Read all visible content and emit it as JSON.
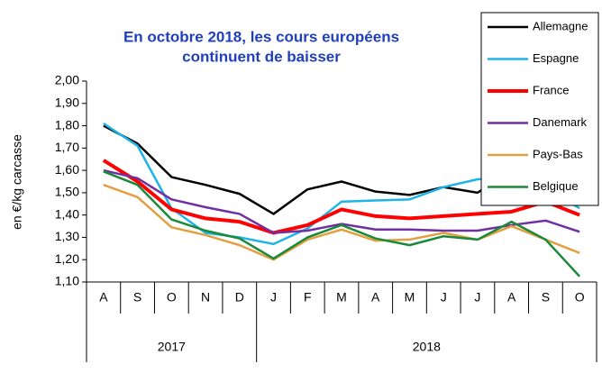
{
  "chart_data": {
    "type": "line",
    "title": [
      "En octobre 2018, les cours européens",
      "continuent de baisser"
    ],
    "y_label": "en €/kg carcasse",
    "categories": [
      "A",
      "S",
      "O",
      "N",
      "D",
      "J",
      "F",
      "M",
      "A",
      "M",
      "J",
      "J",
      "A",
      "S",
      "O"
    ],
    "category_groups": [
      "2017",
      "2017",
      "2017",
      "2017",
      "2017",
      "2018",
      "2018",
      "2018",
      "2018",
      "2018",
      "2018",
      "2018",
      "2018",
      "2018",
      "2018"
    ],
    "ylim": [
      1.1,
      2.0
    ],
    "yticks": [
      {
        "value": 1.1,
        "label": "1,10"
      },
      {
        "value": 1.2,
        "label": "1,20"
      },
      {
        "value": 1.3,
        "label": "1,30"
      },
      {
        "value": 1.4,
        "label": "1,40"
      },
      {
        "value": 1.5,
        "label": "1,50"
      },
      {
        "value": 1.6,
        "label": "1,60"
      },
      {
        "value": 1.7,
        "label": "1,70"
      },
      {
        "value": 1.8,
        "label": "1,80"
      },
      {
        "value": 1.9,
        "label": "1,90"
      },
      {
        "value": 2.0,
        "label": "2,00"
      }
    ],
    "legend": "top-right",
    "series": [
      {
        "name": "Allemagne",
        "color": "#000000",
        "values": [
          1.8,
          1.72,
          1.57,
          1.535,
          1.495,
          1.405,
          1.515,
          1.55,
          1.505,
          1.49,
          1.525,
          1.5,
          1.6,
          1.525,
          1.445
        ]
      },
      {
        "name": "Espagne",
        "color": "#1eb4e8",
        "values": [
          1.81,
          1.71,
          1.43,
          1.32,
          1.3,
          1.27,
          1.34,
          1.46,
          1.465,
          1.47,
          1.525,
          1.56,
          1.57,
          1.52,
          1.43
        ]
      },
      {
        "name": "France",
        "color": "#ff0000",
        "values": [
          1.645,
          1.55,
          1.425,
          1.385,
          1.37,
          1.32,
          1.355,
          1.425,
          1.395,
          1.385,
          1.395,
          1.405,
          1.415,
          1.46,
          1.4
        ]
      },
      {
        "name": "Danemark",
        "color": "#7030a0",
        "values": [
          1.6,
          1.565,
          1.47,
          1.435,
          1.405,
          1.32,
          1.33,
          1.36,
          1.335,
          1.335,
          1.33,
          1.33,
          1.355,
          1.375,
          1.325
        ]
      },
      {
        "name": "Pays-Bas",
        "color": "#e0a040",
        "values": [
          1.535,
          1.48,
          1.345,
          1.31,
          1.265,
          1.2,
          1.29,
          1.335,
          1.285,
          1.29,
          1.32,
          1.29,
          1.35,
          1.29,
          1.23
        ]
      },
      {
        "name": "Belgique",
        "color": "#1a8a3a",
        "values": [
          1.595,
          1.535,
          1.38,
          1.33,
          1.295,
          1.205,
          1.3,
          1.355,
          1.295,
          1.265,
          1.305,
          1.29,
          1.37,
          1.29,
          1.125
        ]
      }
    ]
  }
}
